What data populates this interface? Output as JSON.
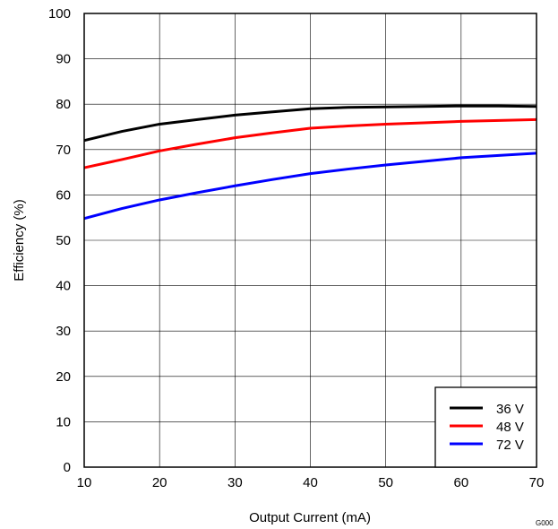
{
  "chart_data": {
    "type": "line",
    "xlabel": "Output Current (mA)",
    "ylabel": "Efficiency (%)",
    "xlim": [
      10,
      70
    ],
    "ylim": [
      0,
      100
    ],
    "xticks": [
      10,
      20,
      30,
      40,
      50,
      60,
      70
    ],
    "yticks": [
      0,
      10,
      20,
      30,
      40,
      50,
      60,
      70,
      80,
      90,
      100
    ],
    "grid": true,
    "legend_position": "bottom-right",
    "series": [
      {
        "name": "36 V",
        "color": "#000000",
        "x": [
          10,
          15,
          20,
          25,
          30,
          35,
          40,
          45,
          50,
          55,
          60,
          65,
          70
        ],
        "y": [
          72.0,
          74.0,
          75.6,
          76.6,
          77.6,
          78.3,
          79.0,
          79.3,
          79.4,
          79.5,
          79.6,
          79.6,
          79.5
        ]
      },
      {
        "name": "48 V",
        "color": "#ff0000",
        "x": [
          10,
          15,
          20,
          25,
          30,
          35,
          40,
          45,
          50,
          55,
          60,
          65,
          70
        ],
        "y": [
          66.0,
          67.8,
          69.7,
          71.2,
          72.6,
          73.7,
          74.7,
          75.2,
          75.6,
          75.9,
          76.2,
          76.4,
          76.6
        ]
      },
      {
        "name": "72 V",
        "color": "#0000ff",
        "x": [
          10,
          15,
          20,
          25,
          30,
          35,
          40,
          45,
          50,
          55,
          60,
          65,
          70
        ],
        "y": [
          54.8,
          57.0,
          58.9,
          60.5,
          62.0,
          63.4,
          64.7,
          65.7,
          66.6,
          67.4,
          68.2,
          68.7,
          69.2
        ]
      }
    ],
    "figure_id": "G000"
  }
}
